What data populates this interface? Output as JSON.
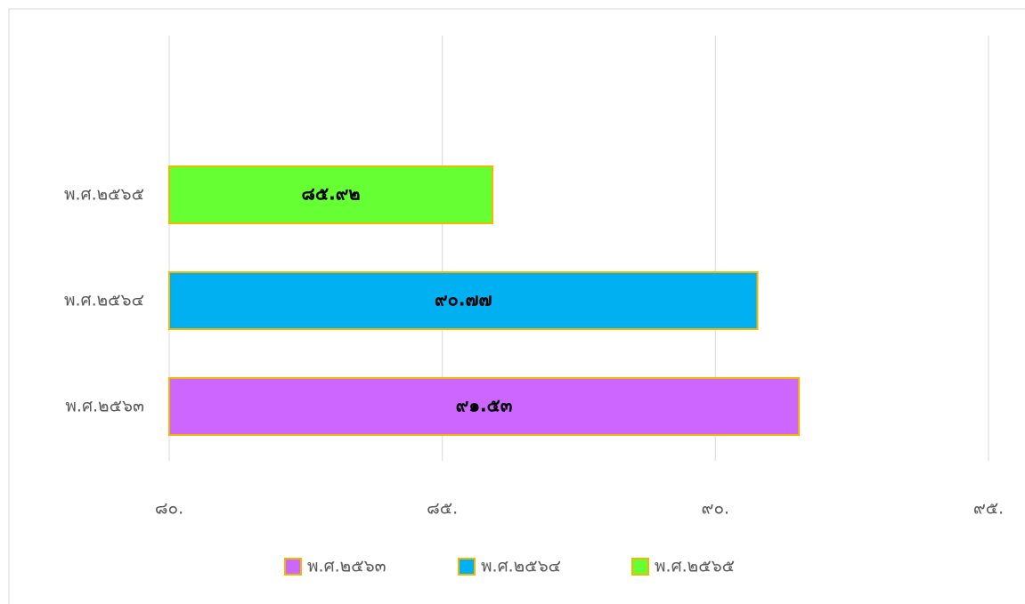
{
  "chart_data": {
    "type": "bar",
    "orientation": "horizontal",
    "categories": [
      "พ.ศ.๒๕๖๓",
      "พ.ศ.๒๕๖๔",
      "พ.ศ.๒๕๖๕"
    ],
    "values": [
      91.53,
      90.77,
      85.92
    ],
    "value_labels": [
      "๙๑.๕๓",
      "๙๐.๗๗",
      "๘๕.๙๒"
    ],
    "colors": [
      "#cc66ff",
      "#00b0f0",
      "#66ff33"
    ],
    "xlim": [
      80,
      95
    ],
    "xticks": [
      {
        "value": 80,
        "label": "๘๐."
      },
      {
        "value": 85,
        "label": "๘๕."
      },
      {
        "value": 90,
        "label": "๙๐."
      },
      {
        "value": 95,
        "label": "๙๕."
      }
    ],
    "grid": true,
    "legend": "bottom"
  }
}
